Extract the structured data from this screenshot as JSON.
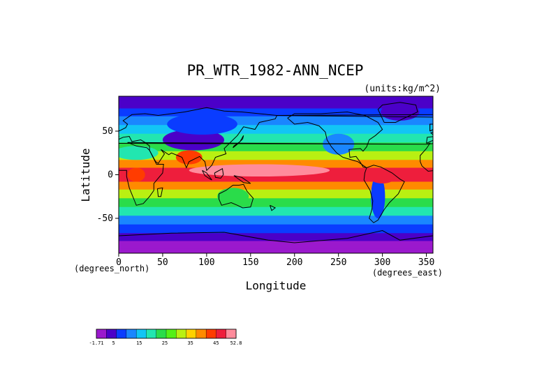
{
  "chart_data": {
    "type": "heatmap",
    "title": "PR_WTR_1982-ANN_NCEP",
    "units_label": "(units:kg/m^2)",
    "xlabel": "Longitude",
    "ylabel": "Latitude",
    "x_units_label": "(degrees_east)",
    "y_units_label": "(degrees_north)",
    "xlim": [
      0,
      357.5
    ],
    "ylim": [
      -90,
      90
    ],
    "x_ticks": [
      0,
      50,
      100,
      150,
      200,
      250,
      300,
      350
    ],
    "y_ticks": [
      -50,
      0,
      50
    ],
    "legend": "bottom-left",
    "colorbar_labels": [
      "-1.71",
      "5",
      "15",
      "25",
      "35",
      "45",
      "52.8"
    ],
    "colorbar_colors": [
      "#9b19cd",
      "#4b00c8",
      "#0a3cff",
      "#1a86ff",
      "#12c5f5",
      "#22e6b0",
      "#2adc4a",
      "#54f017",
      "#b9f012",
      "#ffd200",
      "#ff8a00",
      "#ff3c00",
      "#ee1e3c",
      "#ff8c9c"
    ],
    "bands": [
      {
        "lat": 90,
        "value": 6
      },
      {
        "lat": 80,
        "value": 3
      },
      {
        "lat": 72,
        "value": 8
      },
      {
        "lat": 62,
        "value": 12
      },
      {
        "lat": 52,
        "value": 15
      },
      {
        "lat": 42,
        "value": 19
      },
      {
        "lat": 32,
        "value": 24
      },
      {
        "lat": 22,
        "value": 32
      },
      {
        "lat": 12,
        "value": 41
      },
      {
        "lat": 4,
        "value": 47
      },
      {
        "lat": -4,
        "value": 48
      },
      {
        "lat": -12,
        "value": 40
      },
      {
        "lat": -22,
        "value": 31
      },
      {
        "lat": -32,
        "value": 24
      },
      {
        "lat": -42,
        "value": 18
      },
      {
        "lat": -52,
        "value": 13
      },
      {
        "lat": -62,
        "value": 8
      },
      {
        "lat": -72,
        "value": 4
      },
      {
        "lat": -80,
        "value": 1
      },
      {
        "lat": -90,
        "value": -1
      }
    ]
  }
}
